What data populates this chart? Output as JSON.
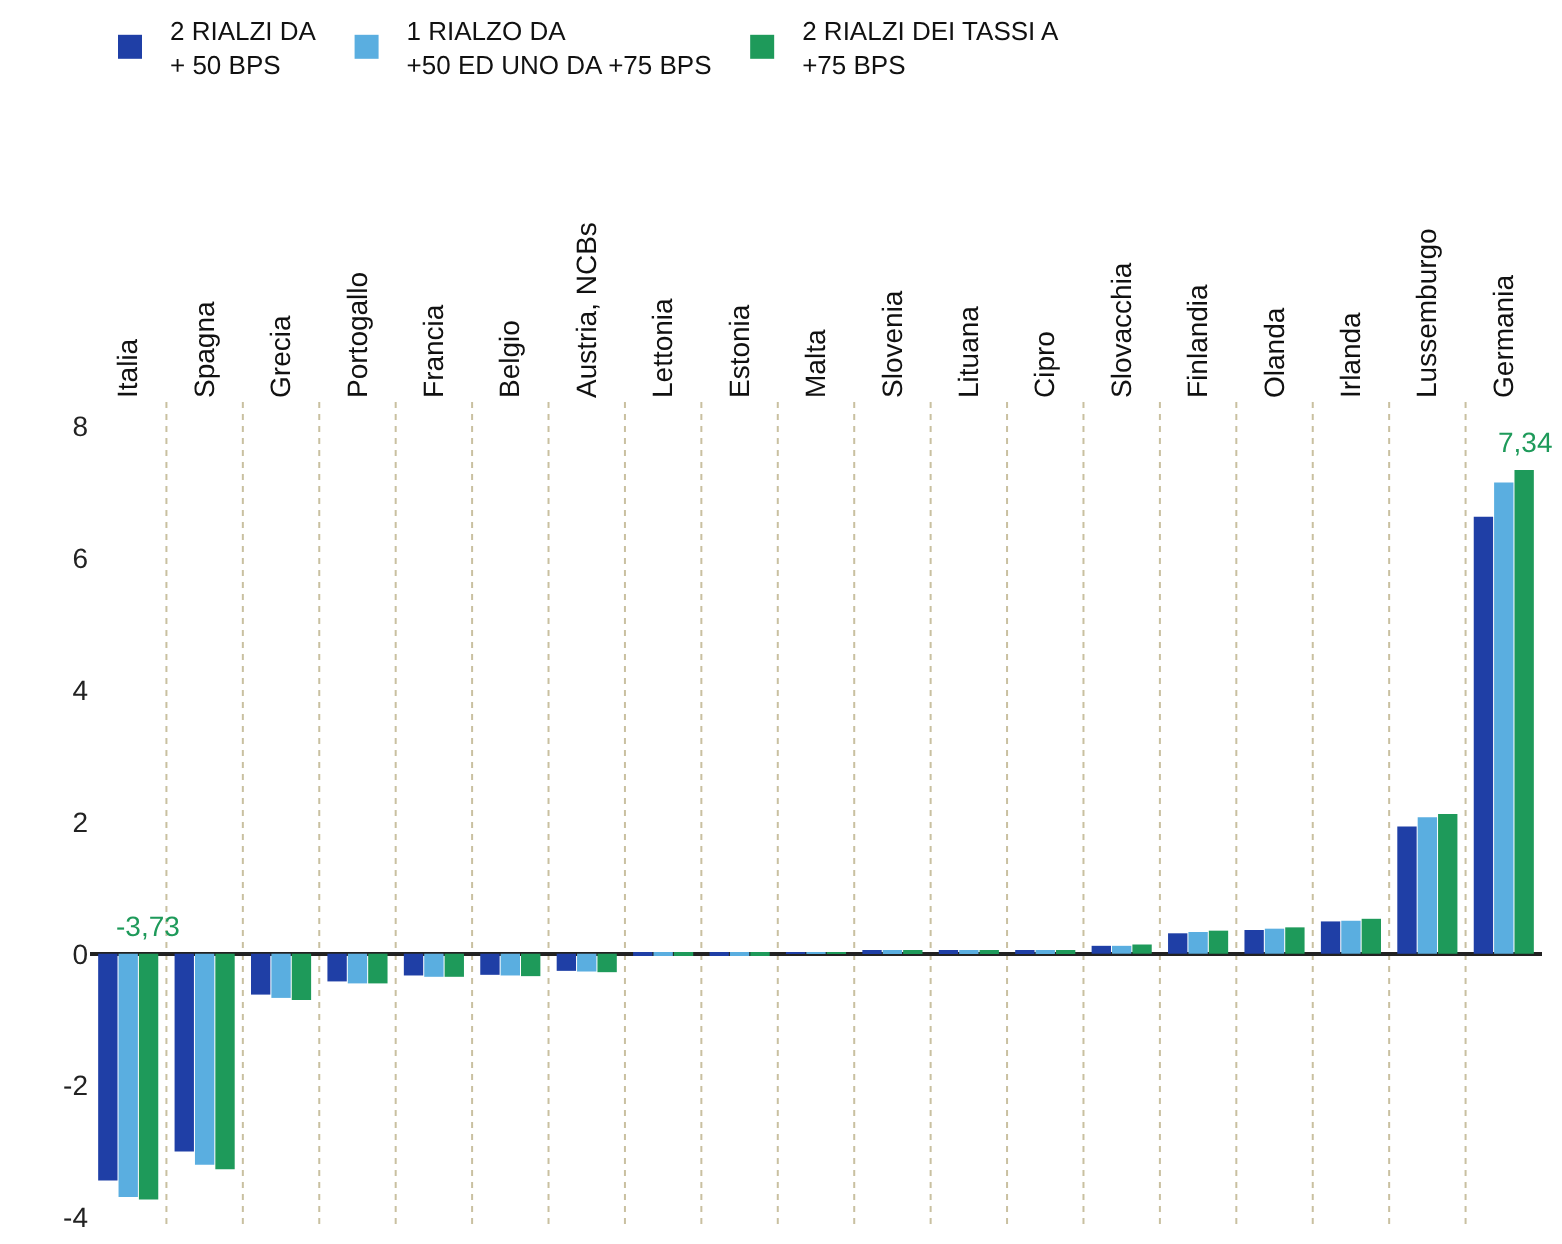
{
  "chart_data": {
    "type": "bar",
    "categories": [
      "Italia",
      "Spagna",
      "Grecia",
      "Portogallo",
      "Francia",
      "Belgio",
      "Austria, NCBs",
      "Lettonia",
      "Estonia",
      "Malta",
      "Slovenia",
      "Lituana",
      "Cipro",
      "Slovacchia",
      "Finlandia",
      "Olanda",
      "Irlanda",
      "Lussemburgo",
      "Germania"
    ],
    "series": [
      {
        "name": "2 RIALZI DA\n+ 50 BPS",
        "color": "#1f3fa6",
        "values": [
          -3.44,
          -3.0,
          -0.62,
          -0.42,
          -0.33,
          -0.32,
          -0.26,
          -0.02,
          -0.02,
          0.02,
          0.04,
          0.04,
          0.04,
          0.12,
          0.31,
          0.36,
          0.49,
          1.93,
          6.63
        ]
      },
      {
        "name": "1 RIALZO DA\n+50 ED UNO DA +75 BPS",
        "color": "#5aaee0",
        "values": [
          -3.69,
          -3.2,
          -0.67,
          -0.45,
          -0.35,
          -0.33,
          -0.27,
          -0.02,
          -0.02,
          0.02,
          0.04,
          0.04,
          0.04,
          0.12,
          0.33,
          0.38,
          0.5,
          2.07,
          7.15
        ]
      },
      {
        "name": "2 RIALZI DEI TASSI A\n+75 BPS",
        "color": "#1e9a5a",
        "values": [
          -3.73,
          -3.27,
          -0.7,
          -0.45,
          -0.35,
          -0.34,
          -0.28,
          -0.02,
          -0.02,
          0.02,
          0.04,
          0.04,
          0.04,
          0.14,
          0.35,
          0.4,
          0.53,
          2.12,
          7.34
        ],
        "value_labels": [
          "-3,73",
          null,
          null,
          null,
          null,
          null,
          null,
          null,
          null,
          null,
          null,
          null,
          null,
          null,
          null,
          null,
          null,
          null,
          "7,34"
        ]
      }
    ],
    "ylim": [
      -4.1,
      8.4
    ],
    "yticks": [
      -4,
      -2,
      0,
      2,
      4,
      6,
      8
    ],
    "grid": "x",
    "legend": "top left"
  }
}
